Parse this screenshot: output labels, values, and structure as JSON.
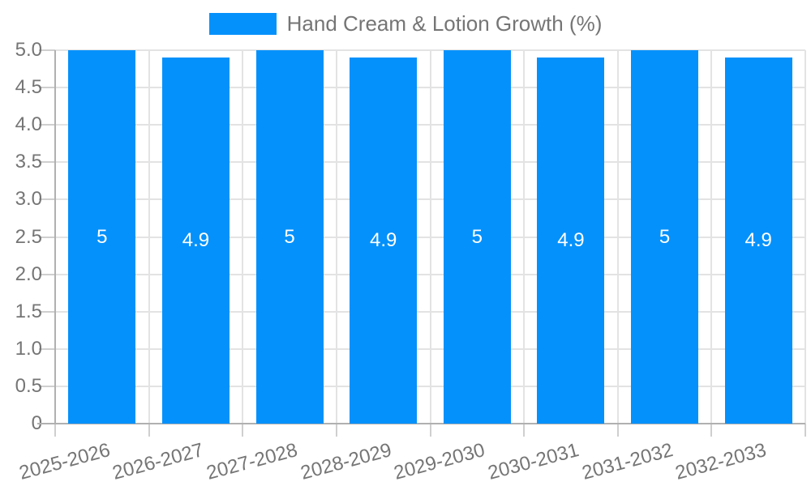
{
  "legend": {
    "label": "Hand Cream & Lotion Growth (%)"
  },
  "chart_data": {
    "type": "bar",
    "title": "Hand Cream & Lotion Growth (%)",
    "categories": [
      "2025-2026",
      "2026-2027",
      "2027-2028",
      "2028-2029",
      "2029-2030",
      "2030-2031",
      "2031-2032",
      "2032-2033"
    ],
    "values": [
      5,
      4.9,
      5,
      4.9,
      5,
      4.9,
      5,
      4.9
    ],
    "value_labels": [
      "5",
      "4.9",
      "5",
      "4.9",
      "5",
      "4.9",
      "5",
      "4.9"
    ],
    "xlabel": "",
    "ylabel": "",
    "ylim": [
      0,
      5
    ],
    "ytick_step": 0.5,
    "ytick_labels": [
      "0",
      "0.5",
      "1.0",
      "1.5",
      "2.0",
      "2.5",
      "3.0",
      "3.5",
      "4.0",
      "4.5",
      "5.0"
    ],
    "grid": true,
    "legend_position": "top-center",
    "x_label_rotation_deg": -15,
    "colors": {
      "bar": "#0591fb",
      "value_label": "#ffffff",
      "axis_text": "#757575",
      "grid": "#e3e3e3",
      "tick": "#cfcfcf",
      "axis_line": "#b0b0b0"
    }
  }
}
